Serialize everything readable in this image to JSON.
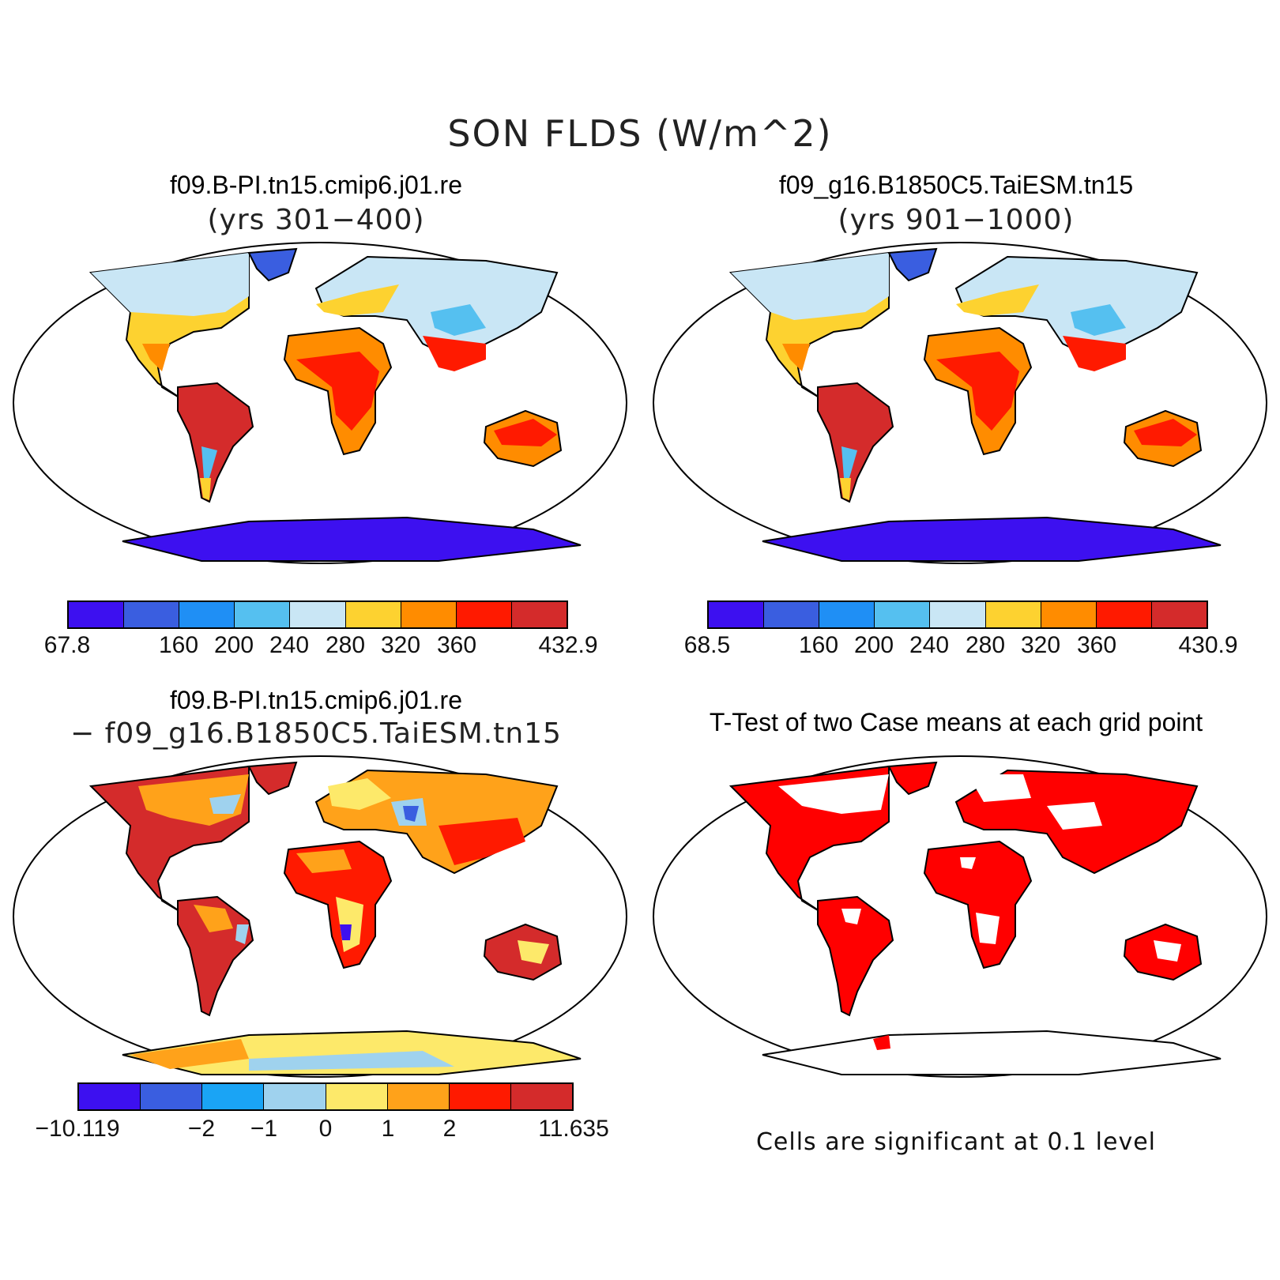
{
  "title": "SON FLDS (W/m^2)",
  "panels": [
    {
      "title": "f09.B-PI.tn15.cmip6.j01.re",
      "subtitle": "(yrs 301−400)",
      "colorbar": {
        "colors": [
          "#3d10f0",
          "#3a5ee0",
          "#1f8ff5",
          "#55c0f0",
          "#c9e6f5",
          "#fdd230",
          "#ff8c00",
          "#ff1a00",
          "#d42b2b"
        ],
        "labels": [
          "67.8",
          "160",
          "200",
          "240",
          "280",
          "320",
          "360",
          "432.9"
        ]
      }
    },
    {
      "title": "f09_g16.B1850C5.TaiESM.tn15",
      "subtitle": "(yrs 901−1000)",
      "colorbar": {
        "colors": [
          "#3d10f0",
          "#3a5ee0",
          "#1f8ff5",
          "#55c0f0",
          "#c9e6f5",
          "#fdd230",
          "#ff8c00",
          "#ff1a00",
          "#d42b2b"
        ],
        "labels": [
          "68.5",
          "160",
          "200",
          "240",
          "280",
          "320",
          "360",
          "430.9"
        ]
      }
    },
    {
      "title": "f09.B-PI.tn15.cmip6.j01.re",
      "subtitle": "− f09_g16.B1850C5.TaiESM.tn15",
      "colorbar": {
        "colors": [
          "#3d10f0",
          "#3a5ee0",
          "#1aa4f5",
          "#9fd2ee",
          "#fde96a",
          "#ffa21a",
          "#ff1a00",
          "#d42b2b"
        ],
        "labels": [
          "−10.119",
          "−2",
          "−1",
          "0",
          "1",
          "2",
          "11.635"
        ]
      }
    },
    {
      "title": "T-Test of two Case means at each grid point",
      "note": "Cells are significant at 0.1 level"
    }
  ]
}
